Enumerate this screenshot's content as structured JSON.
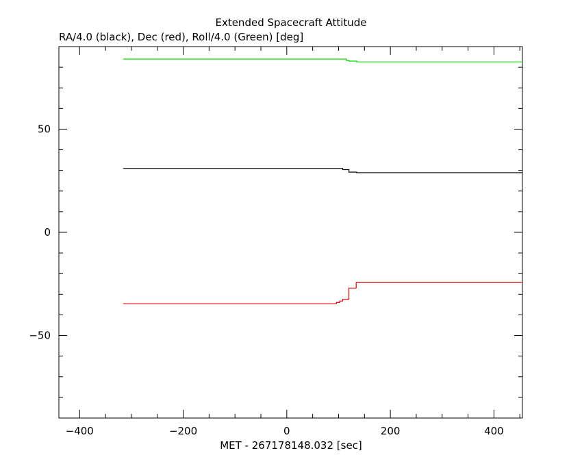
{
  "chart_data": {
    "type": "line",
    "title": "Extended Spacecraft Attitude",
    "subtitle": "RA/4.0 (black), Dec (red), Roll/4.0 (Green) [deg]",
    "xlabel": "MET - 267178148.032 [sec]",
    "ylabel": "",
    "xlim": [
      -440,
      455
    ],
    "ylim": [
      -90,
      90
    ],
    "x_ticks": [
      -400,
      -200,
      0,
      200,
      400
    ],
    "x_tick_labels": [
      "−400",
      "−200",
      "0",
      "200",
      "400"
    ],
    "y_ticks": [
      -50,
      0,
      50
    ],
    "y_tick_labels": [
      "−50",
      "0",
      "50"
    ],
    "grid": false,
    "series": [
      {
        "color": "#00dd00",
        "step": true,
        "x": [
          -316,
          110,
          115,
          120,
          135,
          455
        ],
        "y": [
          84.0,
          84.0,
          83.3,
          83.0,
          82.6,
          82.6
        ]
      },
      {
        "color": "#000000",
        "step": true,
        "x": [
          -316,
          108,
          120,
          135,
          455
        ],
        "y": [
          31.0,
          30.4,
          29.2,
          28.9,
          28.9
        ]
      },
      {
        "color": "#dd0000",
        "step": true,
        "x": [
          -316,
          96,
          102,
          108,
          120,
          134,
          455
        ],
        "y": [
          -34.6,
          -34.0,
          -33.3,
          -32.4,
          -27.0,
          -24.3,
          -24.3
        ]
      }
    ]
  }
}
